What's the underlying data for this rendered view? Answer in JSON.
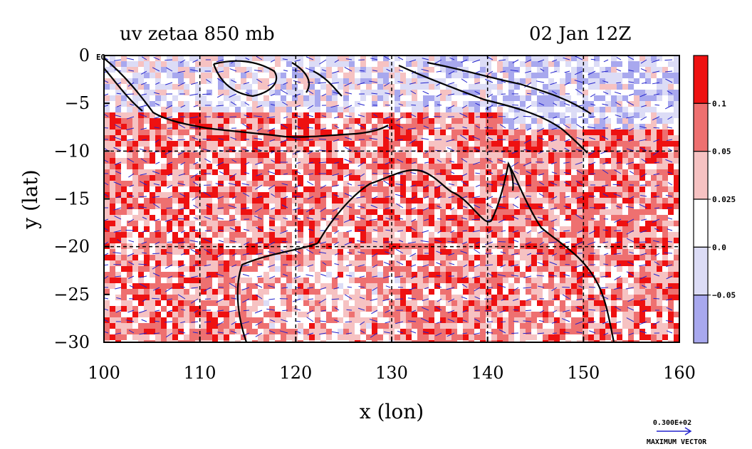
{
  "chart_data": {
    "type": "heatmap",
    "title_left": "uv zetaa 850 mb",
    "title_right": "02 Jan 12Z",
    "xlabel": "x (lon)",
    "ylabel": "y (lat)",
    "xlim": [
      100,
      160
    ],
    "ylim": [
      -30,
      0
    ],
    "x_ticks": [
      "100",
      "110",
      "120",
      "130",
      "140",
      "150",
      "160"
    ],
    "y_ticks": [
      "0",
      "−5",
      "−10",
      "−15",
      "−20",
      "−25",
      "−30"
    ],
    "grid": true,
    "corner_label": "EQ",
    "colorbar": {
      "levels": [
        "0.1",
        "0.05",
        "0.025",
        "0.0",
        "−0.05"
      ],
      "colors": [
        "#ee1111",
        "#ee7070",
        "#f6c2c2",
        "#ffffff",
        "#dcdcf6",
        "#a8a8ee"
      ]
    },
    "vector_legend": {
      "value": "0.300E+02",
      "label": "MAXIMUM VECTOR"
    },
    "field_colors": {
      "strong_positive": "#ee1111",
      "positive": "#ee7070",
      "weak_positive": "#f6c2c2",
      "neutral": "#ffffff",
      "weak_negative": "#dcdcf6",
      "negative": "#a8a8ee",
      "vectors": "#2222cc",
      "coast": "#000000"
    }
  }
}
